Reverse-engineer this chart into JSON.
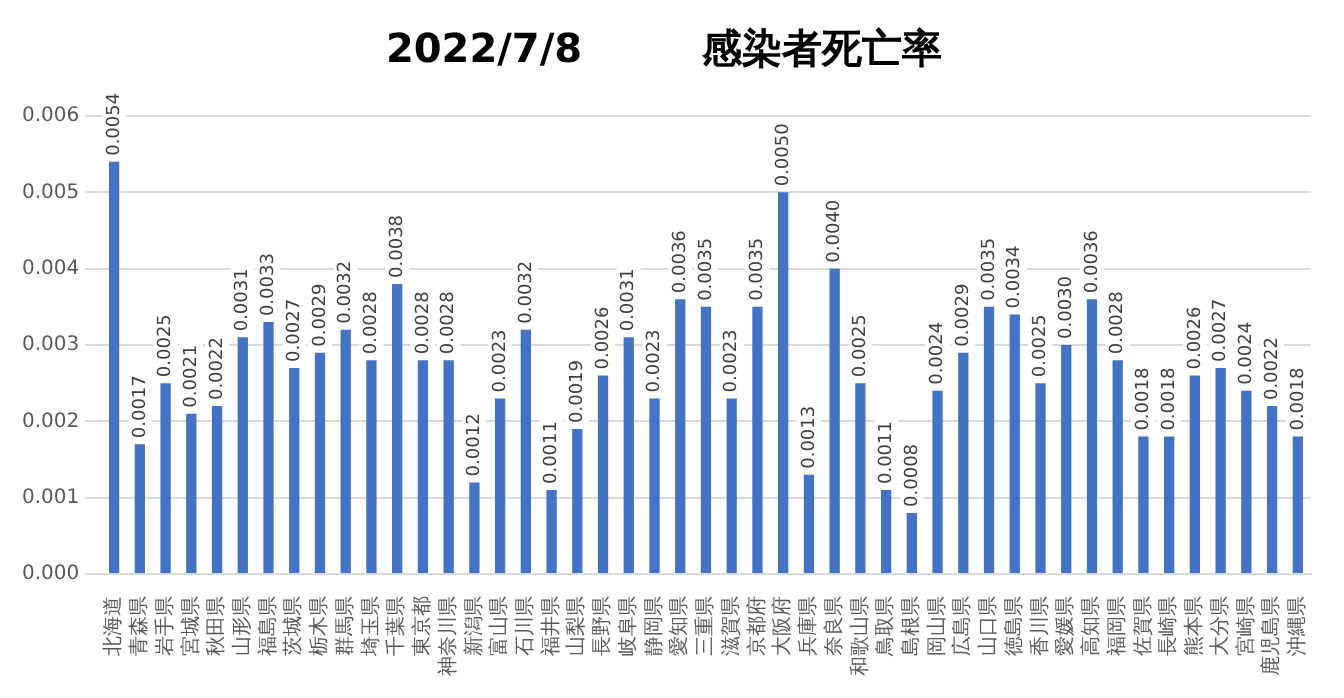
{
  "chart_data": {
    "type": "bar",
    "title": "2022/7/8　　　感染者死亡率",
    "categories": [
      "北海道",
      "青森県",
      "岩手県",
      "宮城県",
      "秋田県",
      "山形県",
      "福島県",
      "茨城県",
      "栃木県",
      "群馬県",
      "埼玉県",
      "千葉県",
      "東京都",
      "神奈川県",
      "新潟県",
      "富山県",
      "石川県",
      "福井県",
      "山梨県",
      "長野県",
      "岐阜県",
      "静岡県",
      "愛知県",
      "三重県",
      "滋賀県",
      "京都府",
      "大阪府",
      "兵庫県",
      "奈良県",
      "和歌山県",
      "鳥取県",
      "島根県",
      "岡山県",
      "広島県",
      "山口県",
      "徳島県",
      "香川県",
      "愛媛県",
      "高知県",
      "福岡県",
      "佐賀県",
      "長崎県",
      "熊本県",
      "大分県",
      "宮崎県",
      "鹿児島県",
      "沖縄県"
    ],
    "values": [
      0.0054,
      0.0017,
      0.0025,
      0.0021,
      0.0022,
      0.0031,
      0.0033,
      0.0027,
      0.0029,
      0.0032,
      0.0028,
      0.0038,
      0.0028,
      0.0028,
      0.0012,
      0.0023,
      0.0032,
      0.0011,
      0.0019,
      0.0026,
      0.0031,
      0.0023,
      0.0036,
      0.0035,
      0.0023,
      0.0035,
      0.005,
      0.0013,
      0.004,
      0.0025,
      0.0011,
      0.0008,
      0.0024,
      0.0029,
      0.0035,
      0.0034,
      0.0025,
      0.003,
      0.0036,
      0.0028,
      0.0018,
      0.0018,
      0.0026,
      0.0027,
      0.0024,
      0.0022,
      0.0018
    ],
    "value_labels": [
      "0.0054",
      "0.0017",
      "0.0025",
      "0.0021",
      "0.0022",
      "0.0031",
      "0.0033",
      "0.0027",
      "0.0029",
      "0.0032",
      "0.0028",
      "0.0038",
      "0.0028",
      "0.0028",
      "0.0012",
      "0.0023",
      "0.0032",
      "0.0011",
      "0.0019",
      "0.0026",
      "0.0031",
      "0.0023",
      "0.0036",
      "0.0035",
      "0.0023",
      "0.0035",
      "0.0050",
      "0.0013",
      "0.0040",
      "0.0025",
      "0.0011",
      "0.0008",
      "0.0024",
      "0.0029",
      "0.0035",
      "0.0034",
      "0.0025",
      "0.0030",
      "0.0036",
      "0.0028",
      "0.0018",
      "0.0018",
      "0.0026",
      "0.0027",
      "0.0024",
      "0.0022",
      "0.0018"
    ],
    "color": "#4472c4",
    "ylim": [
      0,
      0.006
    ],
    "yticks": [
      {
        "value": 0,
        "label": "0.000"
      },
      {
        "value": 0.001,
        "label": "0.001"
      },
      {
        "value": 0.002,
        "label": "0.002"
      },
      {
        "value": 0.003,
        "label": "0.003"
      },
      {
        "value": 0.004,
        "label": "0.004"
      },
      {
        "value": 0.005,
        "label": "0.005"
      },
      {
        "value": 0.006,
        "label": "0.006"
      }
    ],
    "grid": "y",
    "legend": false
  }
}
